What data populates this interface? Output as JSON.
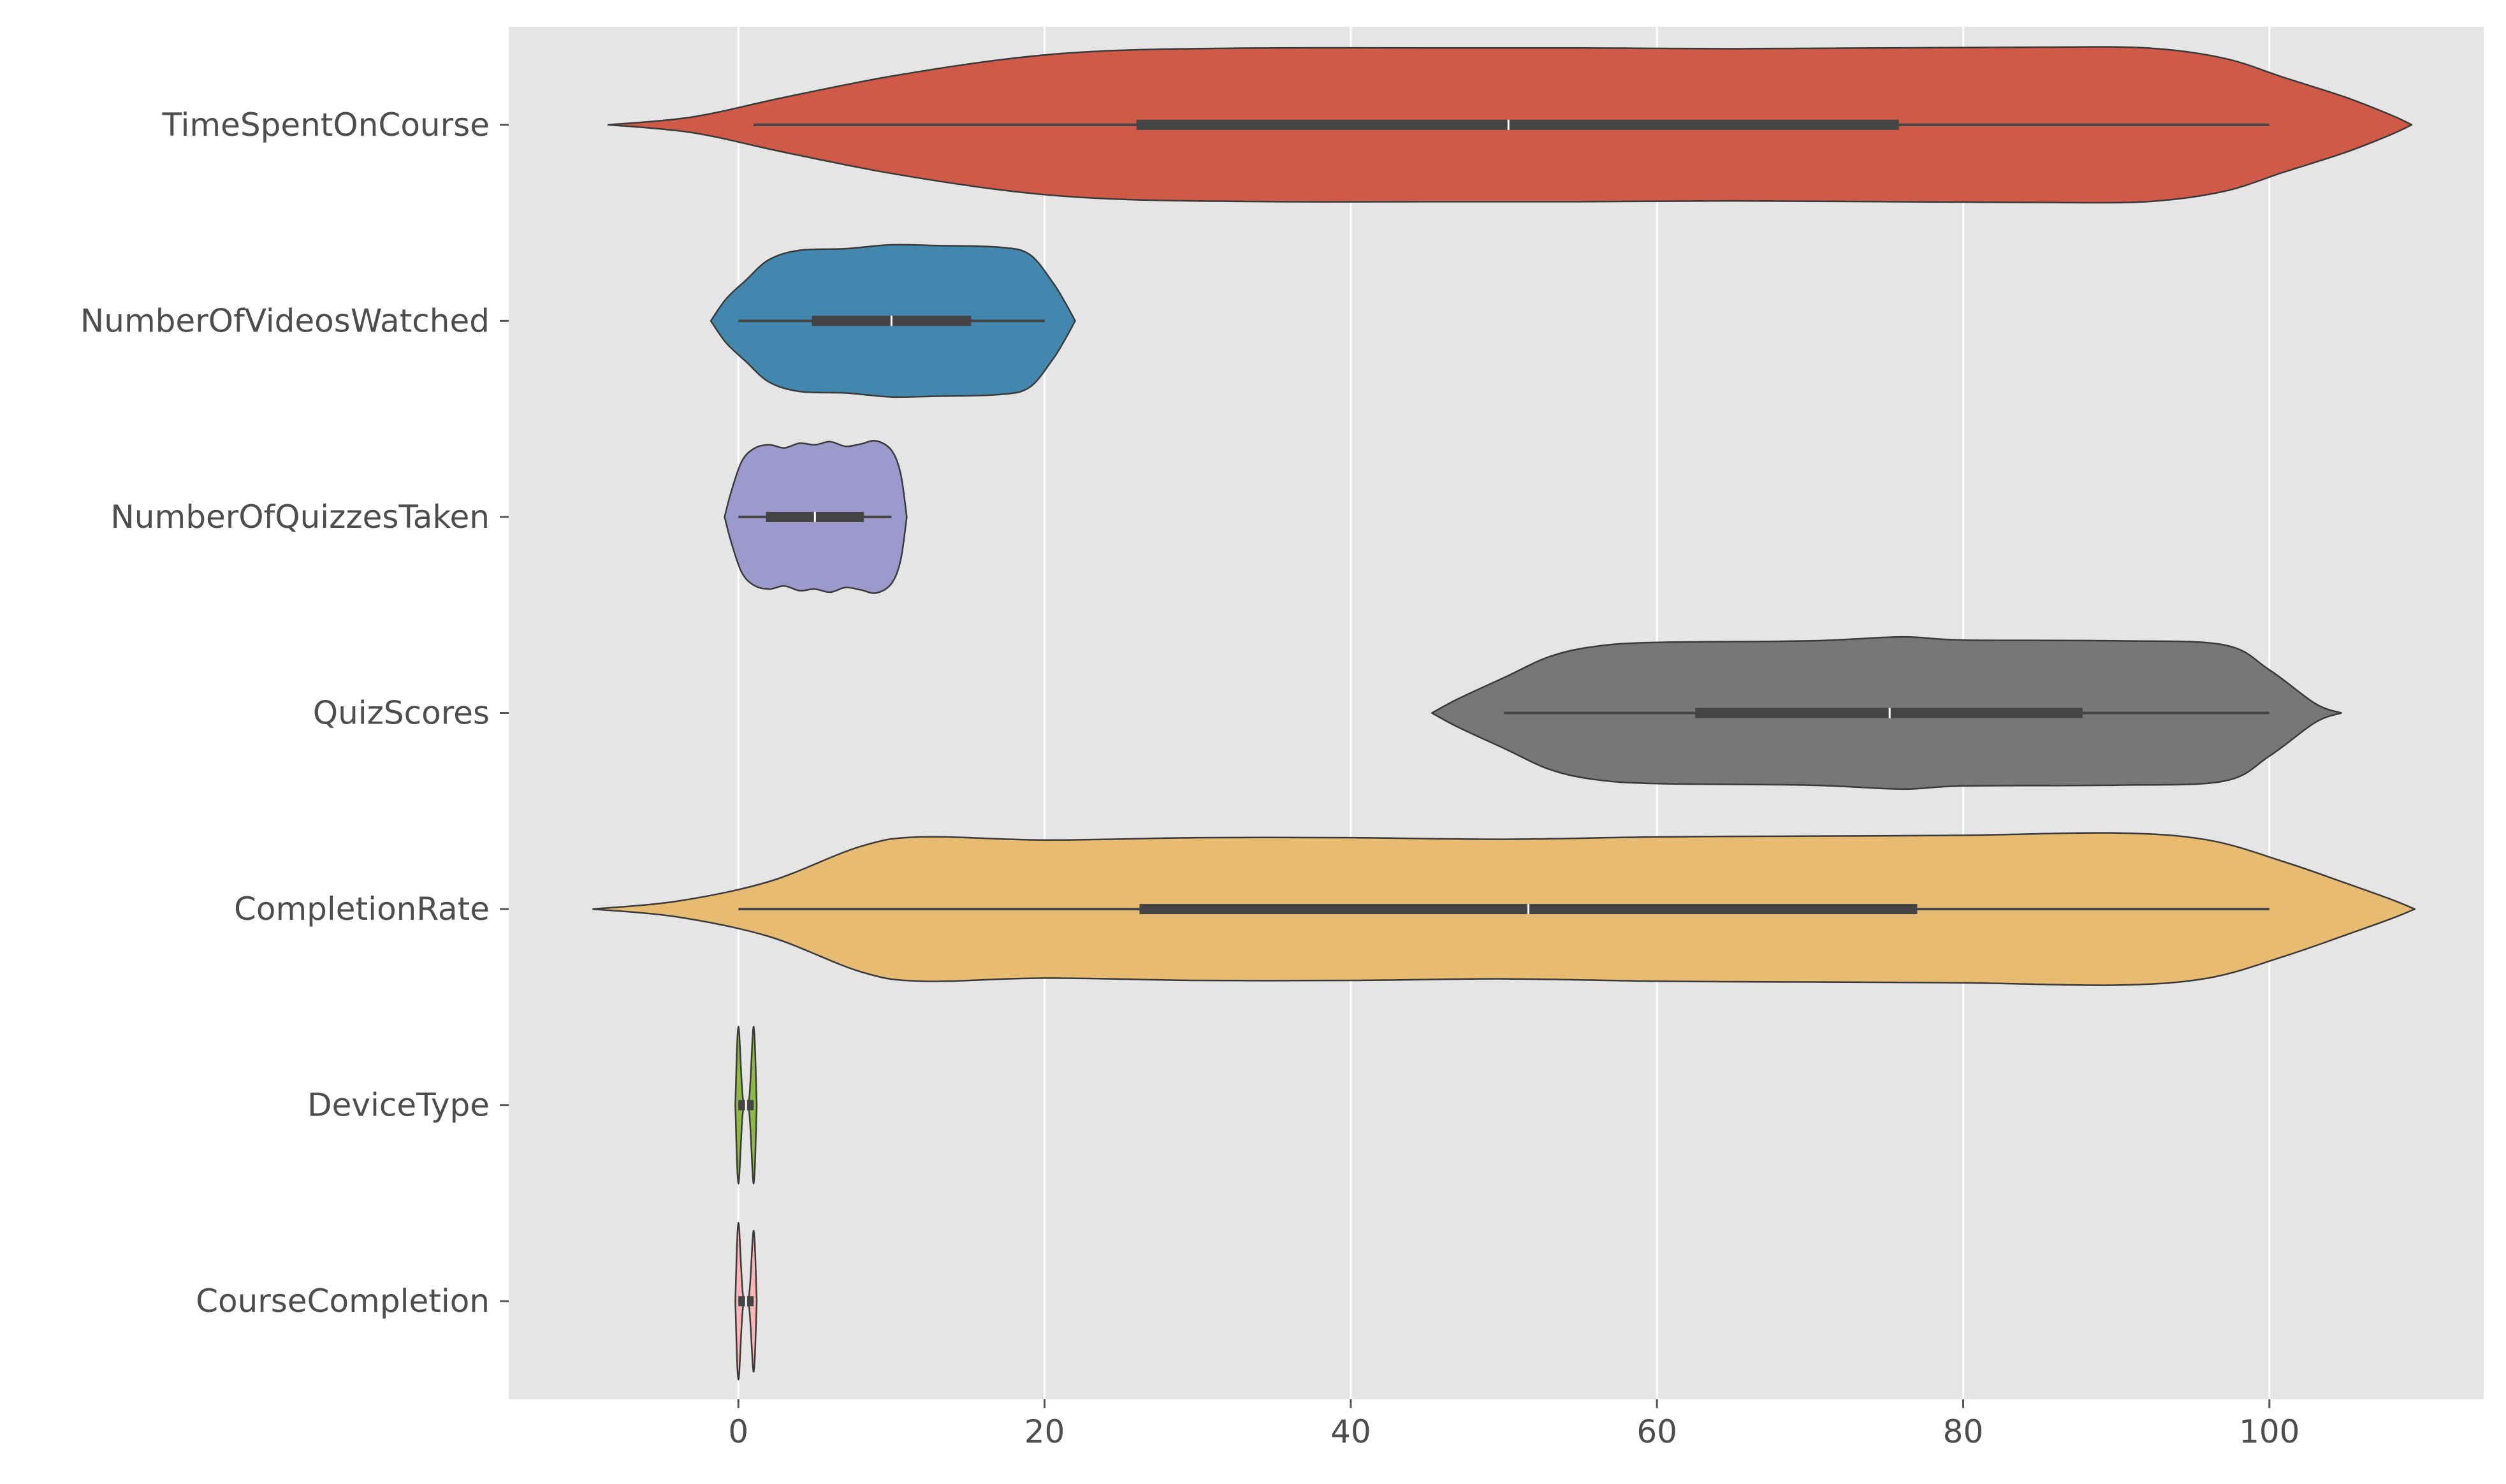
{
  "chart_data": {
    "type": "violin",
    "orientation": "horizontal",
    "title": "",
    "xlabel": "",
    "ylabel": "",
    "xlim": [
      -15,
      114
    ],
    "x_ticks": [
      0,
      20,
      40,
      60,
      80,
      100
    ],
    "x_tick_labels": [
      "0",
      "20",
      "40",
      "60",
      "80",
      "100"
    ],
    "grid": "vertical",
    "background": "#e5e5e5",
    "grid_color": "#ffffff",
    "outline_color": "#3a3a3a",
    "categories": [
      "TimeSpentOnCourse",
      "NumberOfVideosWatched",
      "NumberOfQuizzesTaken",
      "QuizScores",
      "CompletionRate",
      "DeviceType",
      "CourseCompletion"
    ],
    "series": [
      {
        "category": "TimeSpentOnCourse",
        "color": "#cf5a48",
        "whisker": [
          1.0,
          100.0
        ],
        "q1": 26.0,
        "median": 50.3,
        "q3": 75.8,
        "density": [
          [
            -8.5,
            0.0
          ],
          [
            -3,
            0.1
          ],
          [
            3,
            0.35
          ],
          [
            10,
            0.62
          ],
          [
            18,
            0.85
          ],
          [
            25,
            0.95
          ],
          [
            35,
            0.98
          ],
          [
            45,
            0.98
          ],
          [
            55,
            0.98
          ],
          [
            65,
            0.97
          ],
          [
            75,
            0.98
          ],
          [
            85,
            0.99
          ],
          [
            92,
            0.98
          ],
          [
            97,
            0.85
          ],
          [
            101,
            0.6
          ],
          [
            105,
            0.35
          ],
          [
            108,
            0.12
          ],
          [
            109.3,
            0.0
          ]
        ]
      },
      {
        "category": "NumberOfVideosWatched",
        "color": "#4287ad",
        "whisker": [
          0.0,
          20.0
        ],
        "q1": 4.8,
        "median": 10.0,
        "q3": 15.2,
        "density": [
          [
            -1.8,
            0.0
          ],
          [
            -0.8,
            0.28
          ],
          [
            0.5,
            0.52
          ],
          [
            2,
            0.78
          ],
          [
            4,
            0.9
          ],
          [
            7,
            0.92
          ],
          [
            10,
            0.97
          ],
          [
            13,
            0.96
          ],
          [
            17,
            0.94
          ],
          [
            19,
            0.85
          ],
          [
            20.5,
            0.5
          ],
          [
            21.3,
            0.25
          ],
          [
            22,
            0.0
          ]
        ]
      },
      {
        "category": "NumberOfQuizzesTaken",
        "color": "#9d99cd",
        "whisker": [
          0.0,
          10.0
        ],
        "q1": 1.8,
        "median": 5.0,
        "q3": 8.2,
        "density": [
          [
            -0.9,
            0.0
          ],
          [
            -0.5,
            0.3
          ],
          [
            0.2,
            0.7
          ],
          [
            1,
            0.87
          ],
          [
            2,
            0.92
          ],
          [
            3,
            0.88
          ],
          [
            4,
            0.94
          ],
          [
            5,
            0.92
          ],
          [
            6,
            0.96
          ],
          [
            7,
            0.9
          ],
          [
            8,
            0.93
          ],
          [
            9,
            0.97
          ],
          [
            10,
            0.85
          ],
          [
            10.6,
            0.55
          ],
          [
            11.0,
            0.0
          ]
        ]
      },
      {
        "category": "QuizScores",
        "color": "#777777",
        "whisker": [
          50.0,
          100.0
        ],
        "q1": 62.5,
        "median": 75.2,
        "q3": 87.8,
        "density": [
          [
            45.3,
            0.0
          ],
          [
            47,
            0.18
          ],
          [
            50,
            0.45
          ],
          [
            53,
            0.72
          ],
          [
            56,
            0.85
          ],
          [
            60,
            0.9
          ],
          [
            70,
            0.92
          ],
          [
            76,
            0.97
          ],
          [
            80,
            0.93
          ],
          [
            90,
            0.92
          ],
          [
            97,
            0.87
          ],
          [
            100,
            0.55
          ],
          [
            103,
            0.12
          ],
          [
            104.7,
            0.0
          ]
        ]
      },
      {
        "category": "CompletionRate",
        "color": "#e7bb72",
        "whisker": [
          0.0,
          100.0
        ],
        "q1": 26.2,
        "median": 51.6,
        "q3": 77.0,
        "density": [
          [
            -9.5,
            0.0
          ],
          [
            -4,
            0.1
          ],
          [
            2,
            0.35
          ],
          [
            8,
            0.8
          ],
          [
            12,
            0.92
          ],
          [
            20,
            0.88
          ],
          [
            30,
            0.91
          ],
          [
            40,
            0.91
          ],
          [
            50,
            0.89
          ],
          [
            60,
            0.92
          ],
          [
            70,
            0.93
          ],
          [
            80,
            0.94
          ],
          [
            90,
            0.97
          ],
          [
            96,
            0.88
          ],
          [
            101,
            0.6
          ],
          [
            105,
            0.33
          ],
          [
            108,
            0.12
          ],
          [
            109.5,
            0.0
          ]
        ]
      },
      {
        "category": "DeviceType",
        "color": "#8eba42",
        "whisker": [
          0.0,
          1.0
        ],
        "q1": 0.0,
        "median": 0.5,
        "q3": 1.0,
        "density": [
          [
            -0.2,
            0.0
          ],
          [
            0.0,
            1.0
          ],
          [
            0.3,
            0.08
          ],
          [
            0.7,
            0.08
          ],
          [
            1.0,
            1.0
          ],
          [
            1.2,
            0.0
          ]
        ]
      },
      {
        "category": "CourseCompletion",
        "color": "#ffb5b8",
        "whisker": [
          0.0,
          1.0
        ],
        "q1": 0.0,
        "median": 0.5,
        "q3": 1.0,
        "density": [
          [
            -0.2,
            0.0
          ],
          [
            0.0,
            1.0
          ],
          [
            0.3,
            0.08
          ],
          [
            0.7,
            0.08
          ],
          [
            1.0,
            0.9
          ],
          [
            1.2,
            0.0
          ]
        ]
      }
    ]
  }
}
